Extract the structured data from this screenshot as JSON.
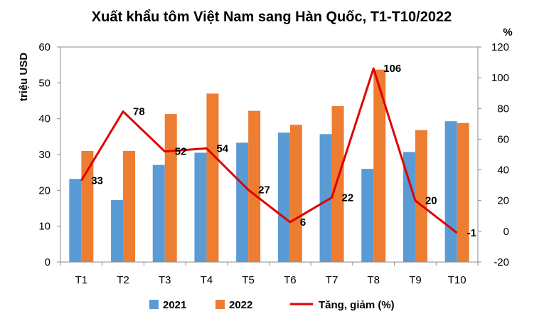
{
  "chart_data": {
    "type": "bar",
    "title": "Xuất khẩu tôm Việt Nam sang Hàn Quốc, T1-T10/2022",
    "ylabel": "triệu USD",
    "y2label": "%",
    "categories": [
      "T1",
      "T2",
      "T3",
      "T4",
      "T5",
      "T6",
      "T7",
      "T8",
      "T9",
      "T10"
    ],
    "ylim": [
      0,
      60
    ],
    "yticks": [
      "0",
      "10",
      "20",
      "30",
      "40",
      "50",
      "60"
    ],
    "y2lim": [
      -20,
      120
    ],
    "y2ticks": [
      "-20",
      "0",
      "20",
      "40",
      "60",
      "80",
      "100",
      "120"
    ],
    "series": [
      {
        "name": "2021",
        "type": "bar",
        "axis": "left",
        "color": "#5b9bd5",
        "values": [
          23.2,
          17.3,
          27.1,
          30.5,
          33.3,
          36.1,
          35.7,
          26.0,
          30.7,
          39.3
        ]
      },
      {
        "name": "2022",
        "type": "bar",
        "axis": "left",
        "color": "#ed7d31",
        "values": [
          31.0,
          31.0,
          41.3,
          47.0,
          42.2,
          38.3,
          43.5,
          53.7,
          36.8,
          38.8
        ]
      },
      {
        "name": "Tăng, giảm (%)",
        "type": "line",
        "axis": "right",
        "color": "#e00000",
        "values": [
          33,
          78,
          52,
          54,
          27,
          6,
          22,
          106,
          20,
          -1
        ],
        "labels": [
          "33",
          "78",
          "52",
          "54",
          "27",
          "6",
          "22",
          "106",
          "20",
          "-1"
        ]
      }
    ],
    "grid": false,
    "legend_position": "bottom"
  }
}
